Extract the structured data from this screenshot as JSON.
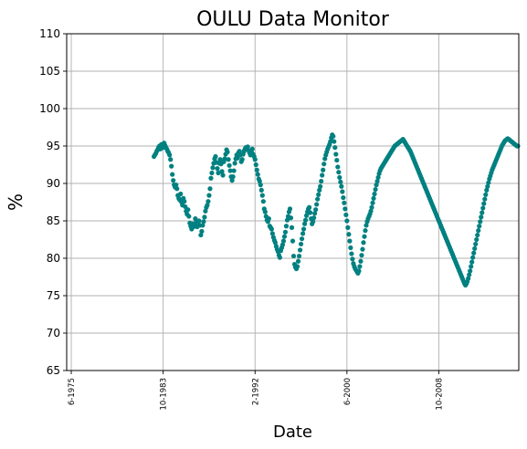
{
  "chart_data": {
    "type": "scatter",
    "title": "OULU Data Monitor",
    "xlabel": "Date",
    "ylabel": "%",
    "ylim": [
      65,
      110
    ],
    "yticks": [
      65,
      70,
      75,
      80,
      85,
      90,
      95,
      100,
      105,
      110
    ],
    "x_is_date": true,
    "xlim": [
      "1975-01",
      "2016-01"
    ],
    "xticks": [
      {
        "date": "1975-06",
        "label": "6-1975"
      },
      {
        "date": "1983-10",
        "label": "10-1983"
      },
      {
        "date": "1992-02",
        "label": "2-1992"
      },
      {
        "date": "2000-06",
        "label": "6-2000"
      },
      {
        "date": "2008-10",
        "label": "10-2008"
      }
    ],
    "grid": true,
    "marker_color": "#008080",
    "series": [
      {
        "x": [
          "1982-12",
          "1983-01",
          "1983-02",
          "1983-03",
          "1983-04",
          "1983-05",
          "1983-06",
          "1983-07",
          "1983-08",
          "1983-09",
          "1983-10",
          "1983-11",
          "1983-12",
          "1984-01",
          "1984-02",
          "1984-03",
          "1984-04",
          "1984-05",
          "1984-06",
          "1984-07",
          "1984-08",
          "1984-09",
          "1984-10",
          "1984-11",
          "1984-12",
          "1985-01",
          "1985-02",
          "1985-03",
          "1985-04",
          "1985-05",
          "1985-06",
          "1985-07",
          "1985-08",
          "1985-09",
          "1985-10",
          "1985-11",
          "1985-12",
          "1986-01",
          "1986-02",
          "1986-03",
          "1986-04",
          "1986-05",
          "1986-06",
          "1986-07",
          "1986-08",
          "1986-09",
          "1986-10",
          "1986-11",
          "1986-12",
          "1987-01",
          "1987-02",
          "1987-03",
          "1987-04",
          "1987-05",
          "1987-06",
          "1987-07",
          "1987-08",
          "1987-09",
          "1987-10",
          "1987-11",
          "1987-12",
          "1988-01",
          "1988-02",
          "1988-03",
          "1988-04",
          "1988-05",
          "1988-06",
          "1988-07",
          "1988-08",
          "1988-09",
          "1988-10",
          "1988-11",
          "1988-12",
          "1989-01",
          "1989-02",
          "1989-03",
          "1989-04",
          "1989-05",
          "1989-06",
          "1989-07",
          "1989-08",
          "1989-09",
          "1989-10",
          "1989-11",
          "1989-12",
          "1990-01",
          "1990-02",
          "1990-03",
          "1990-04",
          "1990-05",
          "1990-06",
          "1990-07",
          "1990-08",
          "1990-09",
          "1990-10",
          "1990-11",
          "1990-12",
          "1991-01",
          "1991-02",
          "1991-03",
          "1991-04",
          "1991-05",
          "1991-06",
          "1991-07",
          "1991-08",
          "1991-09",
          "1991-10",
          "1991-11",
          "1991-12",
          "1992-01",
          "1992-02",
          "1992-03",
          "1992-04",
          "1992-05",
          "1992-06",
          "1992-07",
          "1992-08",
          "1992-09",
          "1992-10",
          "1992-11",
          "1992-12",
          "1993-01",
          "1993-02",
          "1993-03",
          "1993-04",
          "1993-05",
          "1993-06",
          "1993-07",
          "1993-08",
          "1993-09",
          "1993-10",
          "1993-11",
          "1993-12",
          "1994-01",
          "1994-02",
          "1994-03",
          "1994-04",
          "1994-05",
          "1994-06",
          "1994-07",
          "1994-08",
          "1994-09",
          "1994-10",
          "1994-11",
          "1994-12",
          "1995-01",
          "1995-02",
          "1995-03",
          "1995-04",
          "1995-05",
          "1995-06",
          "1995-07",
          "1995-08",
          "1995-09",
          "1995-10",
          "1995-11",
          "1995-12",
          "1996-01",
          "1996-02",
          "1996-03",
          "1996-04",
          "1996-05",
          "1996-06",
          "1996-07",
          "1996-08",
          "1996-09",
          "1996-10",
          "1996-11",
          "1996-12",
          "1997-01",
          "1997-02",
          "1997-03",
          "1997-04",
          "1997-05",
          "1997-06",
          "1997-07",
          "1997-08",
          "1997-09",
          "1997-10",
          "1997-11",
          "1997-12",
          "1998-01",
          "1998-02",
          "1998-03",
          "1998-04",
          "1998-05",
          "1998-06",
          "1998-07",
          "1998-08",
          "1998-09",
          "1998-10",
          "1998-11",
          "1998-12",
          "1999-01",
          "1999-02",
          "1999-03",
          "1999-04",
          "1999-05",
          "1999-06",
          "1999-07",
          "1999-08",
          "1999-09",
          "1999-10",
          "1999-11",
          "1999-12",
          "2000-01",
          "2000-02",
          "2000-03",
          "2000-04",
          "2000-05",
          "2000-06",
          "2000-07",
          "2000-08",
          "2000-09",
          "2000-10",
          "2000-11",
          "2000-12",
          "2001-01",
          "2001-02",
          "2001-03",
          "2001-04",
          "2001-05",
          "2001-06",
          "2001-07",
          "2001-08",
          "2001-09",
          "2001-10",
          "2001-11",
          "2001-12",
          "2002-01",
          "2002-02",
          "2002-03",
          "2002-04",
          "2002-05",
          "2002-06",
          "2002-07",
          "2002-08",
          "2002-09",
          "2002-10",
          "2002-11",
          "2002-12",
          "2003-01",
          "2003-02",
          "2003-03",
          "2003-04",
          "2003-05",
          "2003-06",
          "2003-07",
          "2003-08",
          "2003-09",
          "2003-10",
          "2003-11",
          "2003-12",
          "2004-01",
          "2004-02",
          "2004-03",
          "2004-04",
          "2004-05",
          "2004-06",
          "2004-07",
          "2004-08",
          "2004-09",
          "2004-10",
          "2004-11",
          "2004-12",
          "2005-01",
          "2005-02",
          "2005-03",
          "2005-04",
          "2005-05",
          "2005-06",
          "2005-07",
          "2005-08",
          "2005-09",
          "2005-10",
          "2005-11",
          "2005-12",
          "2006-01",
          "2006-02",
          "2006-03",
          "2006-04",
          "2006-05",
          "2006-06",
          "2006-07",
          "2006-08",
          "2006-09",
          "2006-10",
          "2006-11",
          "2006-12",
          "2007-01",
          "2007-02",
          "2007-03",
          "2007-04",
          "2007-05",
          "2007-06",
          "2007-07",
          "2007-08",
          "2007-09",
          "2007-10",
          "2007-11",
          "2007-12",
          "2008-01",
          "2008-02",
          "2008-03",
          "2008-04",
          "2008-05",
          "2008-06",
          "2008-07",
          "2008-08",
          "2008-09",
          "2008-10",
          "2008-11",
          "2008-12",
          "2009-01",
          "2009-02",
          "2009-03",
          "2009-04",
          "2009-05",
          "2009-06",
          "2009-07",
          "2009-08",
          "2009-09",
          "2009-10",
          "2009-11",
          "2009-12",
          "2010-01",
          "2010-02",
          "2010-03",
          "2010-04",
          "2010-05",
          "2010-06",
          "2010-07",
          "2010-08",
          "2010-09",
          "2010-10",
          "2010-11",
          "2010-12",
          "2011-01",
          "2011-02",
          "2011-03",
          "2011-04",
          "2011-05",
          "2011-06",
          "2011-07",
          "2011-08",
          "2011-09",
          "2011-10",
          "2011-11",
          "2011-12",
          "2012-01",
          "2012-02",
          "2012-03",
          "2012-04",
          "2012-05",
          "2012-06",
          "2012-07",
          "2012-08",
          "2012-09",
          "2012-10",
          "2012-11",
          "2012-12",
          "2013-01",
          "2013-02",
          "2013-03",
          "2013-04",
          "2013-05",
          "2013-06",
          "2013-07",
          "2013-08",
          "2013-09",
          "2013-10",
          "2013-11",
          "2013-12",
          "2014-01",
          "2014-02",
          "2014-03",
          "2014-04",
          "2014-05",
          "2014-06",
          "2014-07",
          "2014-08",
          "2014-09",
          "2014-10",
          "2014-11",
          "2014-12",
          "2015-01",
          "2015-02",
          "2015-03",
          "2015-04",
          "2015-05",
          "2015-06",
          "2015-07",
          "2015-08",
          "2015-09",
          "2015-10",
          "2015-11",
          "2015-12"
        ],
        "y": [
          93.6,
          93.8,
          94.0,
          94.3,
          94.5,
          94.8,
          95.0,
          94.6,
          95.2,
          95.0,
          94.8,
          95.4,
          95.1,
          94.8,
          94.6,
          94.3,
          94.1,
          93.8,
          93.2,
          92.3,
          91.2,
          90.4,
          89.8,
          89.5,
          89.8,
          89.3,
          88.4,
          88.0,
          87.8,
          88.6,
          87.5,
          87.1,
          88.0,
          87.6,
          86.9,
          86.3,
          85.9,
          86.5,
          85.6,
          84.7,
          84.3,
          83.9,
          84.6,
          84.2,
          84.5,
          85.3,
          84.9,
          84.2,
          84.6,
          85.0,
          84.4,
          83.1,
          83.6,
          84.4,
          84.9,
          85.5,
          86.3,
          86.8,
          87.1,
          87.6,
          88.4,
          89.3,
          90.7,
          91.4,
          92.1,
          92.7,
          93.3,
          93.6,
          92.8,
          92.0,
          91.4,
          92.7,
          93.2,
          92.6,
          91.6,
          91.1,
          92.9,
          93.3,
          93.9,
          94.5,
          94.2,
          93.2,
          92.4,
          91.7,
          90.9,
          90.4,
          90.9,
          91.7,
          92.7,
          93.3,
          93.8,
          93.4,
          94.1,
          94.3,
          93.8,
          92.9,
          93.2,
          93.9,
          94.3,
          94.6,
          94.8,
          94.7,
          94.9,
          94.4,
          94.1,
          93.8,
          94.2,
          94.6,
          93.9,
          93.6,
          93.2,
          92.5,
          91.8,
          91.2,
          90.6,
          90.3,
          89.8,
          89.1,
          88.4,
          87.6,
          86.6,
          86.2,
          85.6,
          85.1,
          84.9,
          85.3,
          84.3,
          84.1,
          83.9,
          83.3,
          82.8,
          82.4,
          82.1,
          81.6,
          81.2,
          80.9,
          80.4,
          80.1,
          81.0,
          81.4,
          81.8,
          82.3,
          82.9,
          83.5,
          84.3,
          85.1,
          85.6,
          86.2,
          86.6,
          85.4,
          84.1,
          82.3,
          80.3,
          79.2,
          78.8,
          78.6,
          78.9,
          79.6,
          80.3,
          81.1,
          81.9,
          82.6,
          83.3,
          83.9,
          84.6,
          85.1,
          85.7,
          86.2,
          86.6,
          86.8,
          86.1,
          85.3,
          84.6,
          84.9,
          85.4,
          86.0,
          86.5,
          87.2,
          87.9,
          88.5,
          89.1,
          89.6,
          90.3,
          91.1,
          91.8,
          92.6,
          93.3,
          93.8,
          94.2,
          94.6,
          94.9,
          95.2,
          95.6,
          96.1,
          96.5,
          96.3,
          95.6,
          94.8,
          93.9,
          93.1,
          92.2,
          91.5,
          90.8,
          90.2,
          89.6,
          88.9,
          88.1,
          87.4,
          86.6,
          85.8,
          85.0,
          84.1,
          83.2,
          82.3,
          81.4,
          80.6,
          79.9,
          79.3,
          78.9,
          78.6,
          78.4,
          78.2,
          78.0,
          78.3,
          78.9,
          79.6,
          80.4,
          81.2,
          82.1,
          82.9,
          83.7,
          84.4,
          84.9,
          85.3,
          85.6,
          85.9,
          86.3,
          86.8,
          87.4,
          88.0,
          88.6,
          89.2,
          89.8,
          90.3,
          90.8,
          91.3,
          91.7,
          92.0,
          92.2,
          92.4,
          92.6,
          92.8,
          93.0,
          93.2,
          93.4,
          93.6,
          93.8,
          94.0,
          94.2,
          94.4,
          94.6,
          94.8,
          95.0,
          95.1,
          95.2,
          95.3,
          95.4,
          95.5,
          95.6,
          95.7,
          95.8,
          95.9,
          95.7,
          95.5,
          95.3,
          95.1,
          94.9,
          94.7,
          94.5,
          94.3,
          94.0,
          93.7,
          93.4,
          93.1,
          92.8,
          92.5,
          92.2,
          91.9,
          91.6,
          91.3,
          91.0,
          90.7,
          90.4,
          90.1,
          89.8,
          89.5,
          89.2,
          88.9,
          88.6,
          88.3,
          88.0,
          87.7,
          87.4,
          87.1,
          86.8,
          86.5,
          86.2,
          85.9,
          85.6,
          85.3,
          85.0,
          84.7,
          84.4,
          84.1,
          83.8,
          83.5,
          83.2,
          82.9,
          82.6,
          82.3,
          82.0,
          81.7,
          81.4,
          81.1,
          80.8,
          80.5,
          80.2,
          79.9,
          79.6,
          79.3,
          79.0,
          78.7,
          78.4,
          78.1,
          77.8,
          77.5,
          77.2,
          76.9,
          76.6,
          76.4,
          76.6,
          76.9,
          77.3,
          77.8,
          78.3,
          78.9,
          79.5,
          80.1,
          80.7,
          81.3,
          81.9,
          82.5,
          83.1,
          83.7,
          84.3,
          84.9,
          85.5,
          86.1,
          86.7,
          87.3,
          87.9,
          88.5,
          89.1,
          89.6,
          90.1,
          90.6,
          91.0,
          91.4,
          91.8,
          92.1,
          92.4,
          92.7,
          93.0,
          93.3,
          93.6,
          93.9,
          94.2,
          94.5,
          94.8,
          95.1,
          95.3,
          95.5,
          95.7,
          95.8,
          95.9,
          96.0,
          95.9,
          95.8,
          95.7,
          95.6,
          95.5,
          95.4,
          95.3,
          95.2,
          95.1,
          95.0,
          95.0
        ]
      }
    ]
  }
}
